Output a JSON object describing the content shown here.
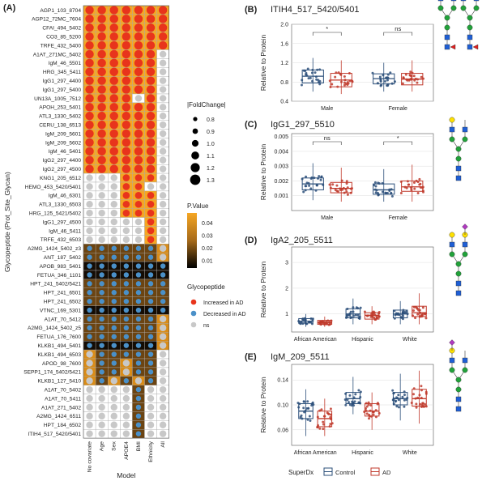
{
  "panels": {
    "a": "(A)",
    "b": "(B)",
    "c": "(C)",
    "d": "(D)",
    "e": "(E)"
  },
  "heatmap": {
    "ylabel": "Glycopeptide (Prot_Site_Glycan)",
    "xlabel": "Model",
    "columns": [
      "No covariate",
      "Age",
      "Sex",
      "APOE4",
      "BMI",
      "Ethnicity",
      "All"
    ],
    "rows": [
      {
        "name": "AGP1_103_8704",
        "cells": "IIIIIII",
        "p": "hhhhhhh"
      },
      {
        "name": "AGP12_72MC_7604",
        "cells": "IIIIIII",
        "p": "hhhhhhh"
      },
      {
        "name": "CFAI_494_5402",
        "cells": "IIIIIII",
        "p": "hhhhhhh"
      },
      {
        "name": "CO3_85_5200",
        "cells": "IIIIIII",
        "p": "hhhhhhh"
      },
      {
        "name": "TRFE_432_5400",
        "cells": "IIIIIII",
        "p": "hhhhhhh"
      },
      {
        "name": "A1AT_271MC_5402",
        "cells": "IIIIIIn",
        "p": "hhhhhhw"
      },
      {
        "name": "IgM_46_5501",
        "cells": "IIIIIIn",
        "p": "hhhhhhw"
      },
      {
        "name": "HRG_345_5411",
        "cells": "IIIIIIn",
        "p": "hhhhhhw"
      },
      {
        "name": "IgG1_297_4400",
        "cells": "IIIIIIn",
        "p": "hhhhhhw"
      },
      {
        "name": "IgG1_297_5400",
        "cells": "IIIIIIn",
        "p": "hhhhhhw"
      },
      {
        "name": "UN13A_1005_7512",
        "cells": "IIIInIn",
        "p": "hhhhwhw"
      },
      {
        "name": "APOH_253_5401",
        "cells": "IIIIIIn",
        "p": "hhhhhhw"
      },
      {
        "name": "ATL3_1330_5402",
        "cells": "IIIIIIn",
        "p": "hhhhhhw"
      },
      {
        "name": "CERU_138_6513",
        "cells": "IIIIIIn",
        "p": "hhhhhhw"
      },
      {
        "name": "IgM_209_5601",
        "cells": "IIIIIIn",
        "p": "hhhhhhw"
      },
      {
        "name": "IgM_209_5602",
        "cells": "IIIIIIn",
        "p": "hhhhhhw"
      },
      {
        "name": "IgM_46_5401",
        "cells": "IIIIIIn",
        "p": "hhhhhhw"
      },
      {
        "name": "IgG2_297_4400",
        "cells": "IIIIIIn",
        "p": "hhhhhhw"
      },
      {
        "name": "IgG2_297_4500",
        "cells": "IIIIIIn",
        "p": "hhhhhhw"
      },
      {
        "name": "KNG1_205_6512",
        "cells": "nnnIIIn",
        "p": "wwwhhhw"
      },
      {
        "name": "HEMO_453_5420/5401",
        "cells": "nnnIInn",
        "p": "wwwhhww"
      },
      {
        "name": "IgM_46_6301",
        "cells": "nnnIIIn",
        "p": "wwwhhhw"
      },
      {
        "name": "ATL3_1330_6503",
        "cells": "nnnIIIn",
        "p": "wwwhhhw"
      },
      {
        "name": "HRG_125_5421/5402",
        "cells": "nnnIIIn",
        "p": "wwwhhhw"
      },
      {
        "name": "IgG1_297_4500",
        "cells": "nnnnnIn",
        "p": "wwwwwhw"
      },
      {
        "name": "IgM_46_5411",
        "cells": "nnnnnIn",
        "p": "wwwwwhw"
      },
      {
        "name": "TRFE_432_6503",
        "cells": "nnnnnIn",
        "p": "wwwwwhw"
      },
      {
        "name": "A2MG_1424_5402_z3",
        "cells": "DDDDDDn",
        "p": "dddddda"
      },
      {
        "name": "ANT_187_5402",
        "cells": "DDDDDDn",
        "p": "dddddda"
      },
      {
        "name": "APOB_983_5401",
        "cells": "DDDDDDD",
        "p": "kkkkkkk"
      },
      {
        "name": "FETUA_346_1101",
        "cells": "DDDDDDD",
        "p": "kkkkkkk"
      },
      {
        "name": "HPT_241_5402/5421",
        "cells": "DDDDDDD",
        "p": "ddddddd"
      },
      {
        "name": "HPT_241_6501",
        "cells": "DDDDDDD",
        "p": "ddddddd"
      },
      {
        "name": "HPT_241_6502",
        "cells": "DDDDDDD",
        "p": "ddddddd"
      },
      {
        "name": "VTNC_169_5301",
        "cells": "DDDDDDD",
        "p": "kkkkkkk"
      },
      {
        "name": "A1AT_70_5412",
        "cells": "DDDDDDn",
        "p": "dddddda"
      },
      {
        "name": "A2MG_1424_5402_z5",
        "cells": "DDDDDDn",
        "p": "dddddda"
      },
      {
        "name": "FETUA_176_7600",
        "cells": "DDDDDDn",
        "p": "dddddda"
      },
      {
        "name": "KLKB1_494_5401",
        "cells": "DDDDDDn",
        "p": "kkkkkka"
      },
      {
        "name": "KLKB1_494_6503",
        "cells": "nDDDDDn",
        "p": "adddddw"
      },
      {
        "name": "APOD_98_7600",
        "cells": "nDDnDDn",
        "p": "addaddw"
      },
      {
        "name": "SEPP1_174_5402/5421",
        "cells": "nDDnDDn",
        "p": "addaddw"
      },
      {
        "name": "KLKB1_127_5410",
        "cells": "nDnDnDn",
        "p": "adadadw"
      },
      {
        "name": "A1AT_70_5402",
        "cells": "nnnnDnn",
        "p": "wwwwdww"
      },
      {
        "name": "A1AT_70_5411",
        "cells": "nnnnDnn",
        "p": "wwwwdww"
      },
      {
        "name": "A1AT_271_5402",
        "cells": "nnnnDnn",
        "p": "wwwwdww"
      },
      {
        "name": "A2MG_1424_6511",
        "cells": "nnnnDnn",
        "p": "wwwwdww"
      },
      {
        "name": "HPT_184_6502",
        "cells": "nnnnDnn",
        "p": "wwwwdww"
      },
      {
        "name": "ITIH4_517_5420/5401",
        "cells": "nnnnDnn",
        "p": "wwwwdww"
      }
    ]
  },
  "legends": {
    "fold_title": "|FoldChange|",
    "fold_labels": [
      "0.8",
      "0.9",
      "1.0",
      "1.1",
      "1.2",
      "1.3"
    ],
    "p_title": "P.Value",
    "p_labels": [
      "0.04",
      "0.03",
      "0.02",
      "0.01"
    ],
    "glyco_title": "Glycopeptide",
    "glyco_labels": [
      "Increased in AD",
      "Decreased in AD",
      "ns"
    ],
    "superdx_title": "SuperDx",
    "superdx_labels": [
      "Control",
      "AD"
    ]
  },
  "colors": {
    "increased": "#e8341c",
    "decreased": "#4a90c8",
    "ns": "#c8c8c8",
    "control": "#2b4f7a",
    "ad": "#c0392b",
    "p_high": "#f5a623",
    "p_mid": "#a66a1a",
    "p_low": "#000000"
  },
  "chart_data": [
    {
      "type": "heatmap",
      "note_cells": "I = increased in AD, D = decreased in AD, n = ns",
      "xlabel": "Model",
      "ylabel": "Glycopeptide (Prot_Site_Glycan)"
    },
    {
      "type": "box",
      "title": "ITIH4_517_5420/5401",
      "ylabel": "Relative to Protein",
      "categories": [
        "Male",
        "Female"
      ],
      "yticks": [
        "0.4",
        "0.8",
        "1.2",
        "1.6",
        "2.0"
      ],
      "ylim": [
        0.4,
        2.0
      ],
      "series": [
        {
          "name": "Control",
          "boxes": [
            [
              0.6,
              0.78,
              0.92,
              1.05,
              1.3
            ],
            [
              0.6,
              0.76,
              0.87,
              0.97,
              1.2
            ]
          ]
        },
        {
          "name": "AD",
          "boxes": [
            [
              0.55,
              0.7,
              0.84,
              0.98,
              1.25
            ],
            [
              0.6,
              0.74,
              0.86,
              0.98,
              1.25
            ]
          ]
        }
      ],
      "sig": [
        "*",
        "ns"
      ]
    },
    {
      "type": "box",
      "title": "IgG1_297_5510",
      "ylabel": "Relative to Protein",
      "categories": [
        "Male",
        "Female"
      ],
      "yticks": [
        "0.001",
        "0.002",
        "0.003",
        "0.004",
        "0.005"
      ],
      "ylim": [
        0.0,
        0.0052
      ],
      "series": [
        {
          "name": "Control",
          "boxes": [
            [
              0.0007,
              0.0014,
              0.0018,
              0.0022,
              0.0032
            ],
            [
              0.0006,
              0.0011,
              0.0014,
              0.0018,
              0.0028
            ]
          ]
        },
        {
          "name": "AD",
          "boxes": [
            [
              0.0006,
              0.0012,
              0.0015,
              0.0019,
              0.0029
            ],
            [
              0.0006,
              0.0013,
              0.0016,
              0.002,
              0.0031
            ]
          ]
        }
      ],
      "sig": [
        "ns",
        "*"
      ]
    },
    {
      "type": "box",
      "title": "IgA2_205_5511",
      "ylabel": "Relative to Protein",
      "categories": [
        "African American",
        "Hispanic",
        "White"
      ],
      "yticks": [
        "1",
        "2",
        "3"
      ],
      "ylim": [
        0.3,
        3.6
      ],
      "series": [
        {
          "name": "Control",
          "boxes": [
            [
              0.5,
              0.65,
              0.72,
              0.82,
              1.0
            ],
            [
              0.6,
              0.85,
              1.0,
              1.2,
              1.6
            ],
            [
              0.6,
              0.85,
              1.0,
              1.15,
              1.5
            ]
          ]
        },
        {
          "name": "AD",
          "boxes": [
            [
              0.5,
              0.6,
              0.66,
              0.75,
              0.9
            ],
            [
              0.6,
              0.8,
              0.95,
              1.05,
              1.3
            ],
            [
              0.6,
              0.9,
              1.05,
              1.3,
              1.8
            ]
          ]
        }
      ],
      "sig": []
    },
    {
      "type": "box",
      "title": "IgM_209_5511",
      "ylabel": "Relative to Protein",
      "categories": [
        "African American",
        "Hispanic",
        "White"
      ],
      "yticks": [
        "0.06",
        "0.10",
        "0.14"
      ],
      "ylim": [
        0.035,
        0.165
      ],
      "series": [
        {
          "name": "Control",
          "boxes": [
            [
              0.05,
              0.078,
              0.09,
              0.102,
              0.125
            ],
            [
              0.085,
              0.102,
              0.11,
              0.12,
              0.145
            ],
            [
              0.075,
              0.1,
              0.11,
              0.12,
              0.15
            ]
          ]
        },
        {
          "name": "AD",
          "boxes": [
            [
              0.05,
              0.065,
              0.078,
              0.09,
              0.11
            ],
            [
              0.06,
              0.082,
              0.09,
              0.102,
              0.12
            ],
            [
              0.07,
              0.098,
              0.11,
              0.125,
              0.155
            ]
          ]
        }
      ],
      "sig": []
    }
  ]
}
